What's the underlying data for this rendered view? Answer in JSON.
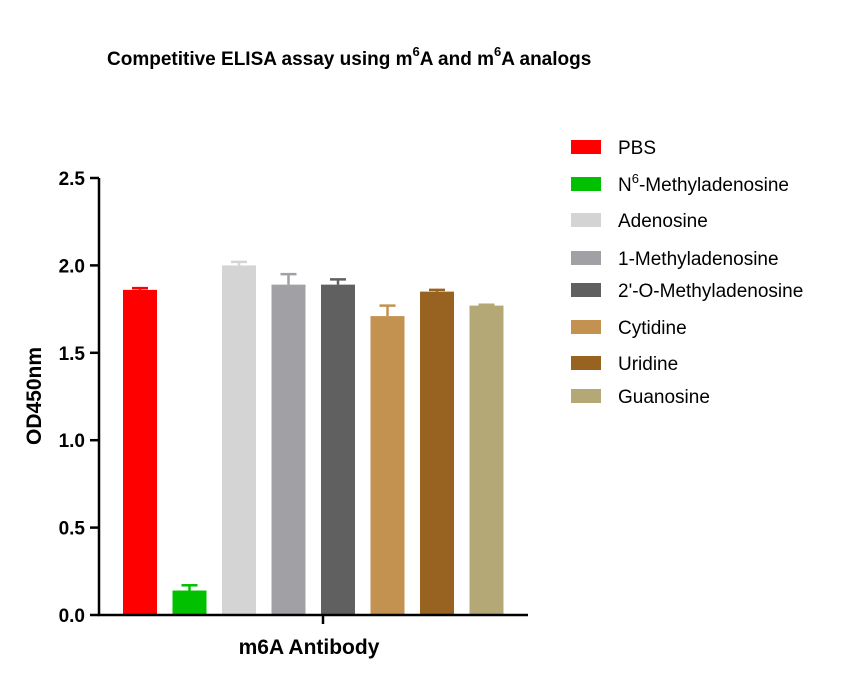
{
  "title": {
    "part1": "Competitive ELISA assay using m",
    "sup1": "6",
    "part2": "A and m",
    "sup2": "6",
    "part3": "A analogs"
  },
  "chart_data": {
    "type": "bar",
    "xlabel": "m6A Antibody",
    "ylabel": "OD450nm",
    "ylim": [
      0,
      2.5
    ],
    "yticks": [
      "0.0",
      "0.5",
      "1.0",
      "1.5",
      "2.0",
      "2.5"
    ],
    "grid": false,
    "legend_position": "right",
    "series": [
      {
        "name": "PBS",
        "value": 1.86,
        "error": 0.01,
        "color": "#ff0000"
      },
      {
        "name": "N6-Methyladenosine",
        "name_parts": [
          "N",
          "6",
          "-Methyladenosine"
        ],
        "value": 0.14,
        "error": 0.03,
        "color": "#00c000"
      },
      {
        "name": "Adenosine",
        "value": 2.0,
        "error": 0.02,
        "color": "#d4d4d4"
      },
      {
        "name": "1-Methyladenosine",
        "value": 1.89,
        "error": 0.06,
        "color": "#a0a0a5"
      },
      {
        "name": "2'-O-Methyladenosine",
        "value": 1.89,
        "error": 0.03,
        "color": "#606060"
      },
      {
        "name": "Cytidine",
        "value": 1.71,
        "error": 0.06,
        "color": "#c39250"
      },
      {
        "name": "Uridine",
        "value": 1.85,
        "error": 0.01,
        "color": "#986220"
      },
      {
        "name": "Guanosine",
        "value": 1.77,
        "error": 0.005,
        "color": "#b3a876"
      }
    ]
  }
}
